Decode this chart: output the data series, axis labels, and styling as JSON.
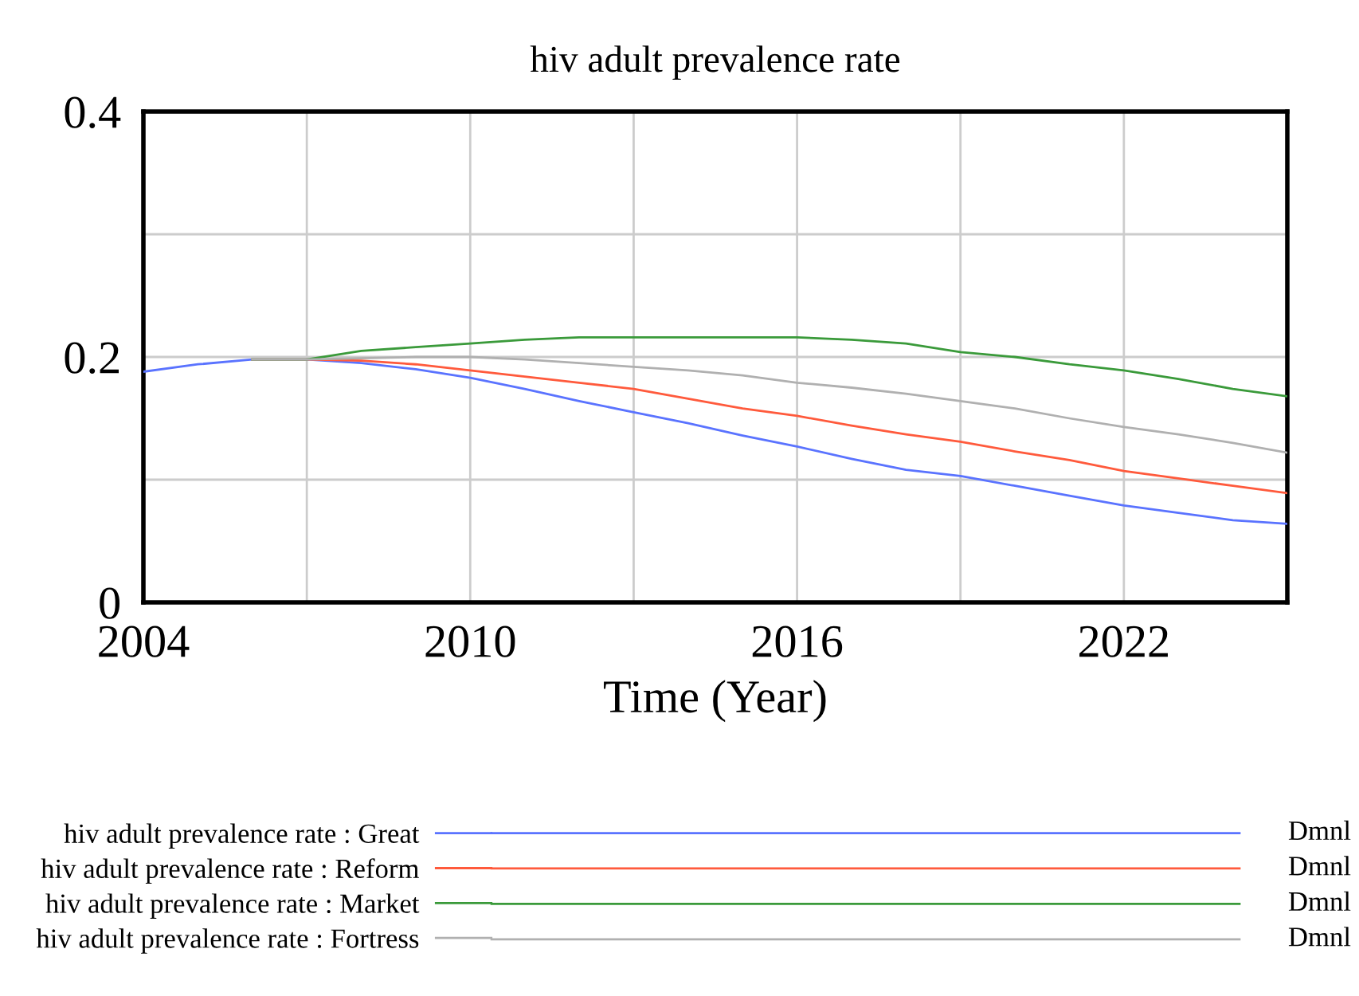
{
  "chart_data": {
    "type": "line",
    "title": "hiv adult prevalence rate",
    "xlabel": "Time (Year)",
    "x": [
      2004,
      2005,
      2006,
      2007,
      2008,
      2009,
      2010,
      2011,
      2012,
      2013,
      2014,
      2015,
      2016,
      2017,
      2018,
      2019,
      2020,
      2021,
      2022,
      2023,
      2024,
      2025
    ],
    "series": [
      {
        "name": "hiv adult prevalence rate : Great",
        "color": "#5a73ff",
        "values": [
          0.188,
          0.194,
          0.198,
          0.198,
          0.195,
          0.19,
          0.183,
          0.174,
          0.164,
          0.155,
          0.146,
          0.136,
          0.127,
          0.117,
          0.108,
          0.103,
          0.095,
          0.087,
          0.079,
          0.073,
          0.067,
          0.064
        ]
      },
      {
        "name": "hiv adult prevalence rate : Reform",
        "color": "#ff5a3c",
        "values": [
          null,
          null,
          0.198,
          0.198,
          0.197,
          0.194,
          0.189,
          0.184,
          0.179,
          0.174,
          0.166,
          0.158,
          0.152,
          0.144,
          0.137,
          0.131,
          0.123,
          0.116,
          0.107,
          0.101,
          0.095,
          0.089
        ]
      },
      {
        "name": "hiv adult prevalence rate : Market",
        "color": "#3a9a3a",
        "values": [
          null,
          null,
          0.198,
          0.198,
          0.205,
          0.208,
          0.211,
          0.214,
          0.216,
          0.216,
          0.216,
          0.216,
          0.216,
          0.214,
          0.211,
          0.204,
          0.2,
          0.194,
          0.189,
          0.182,
          0.174,
          0.168
        ]
      },
      {
        "name": "hiv adult prevalence rate : Fortress",
        "color": "#b0b0b0",
        "values": [
          null,
          null,
          0.198,
          0.198,
          0.199,
          0.2,
          0.2,
          0.198,
          0.195,
          0.192,
          0.189,
          0.185,
          0.179,
          0.175,
          0.17,
          0.164,
          0.158,
          0.15,
          0.143,
          0.137,
          0.13,
          0.122
        ]
      }
    ],
    "xlim": [
      2004,
      2025
    ],
    "xticks": [
      2004,
      {
        "value": 2007,
        "label": null
      },
      2010,
      {
        "value": 2013,
        "label": null
      },
      2016,
      {
        "value": 2019,
        "label": null
      },
      2022,
      {
        "value": 2025,
        "label": null
      }
    ],
    "ylim": [
      0,
      0.4
    ],
    "yticks": [
      0,
      {
        "value": 0.1,
        "label": null
      },
      0.2,
      {
        "value": 0.3,
        "label": null
      },
      0.4
    ],
    "grid": true,
    "legend": "bottom",
    "line_style": "solid",
    "marker": "none",
    "annotations": [
      "Dmnl",
      "Dmnl",
      "Dmnl",
      "Dmnl"
    ]
  }
}
